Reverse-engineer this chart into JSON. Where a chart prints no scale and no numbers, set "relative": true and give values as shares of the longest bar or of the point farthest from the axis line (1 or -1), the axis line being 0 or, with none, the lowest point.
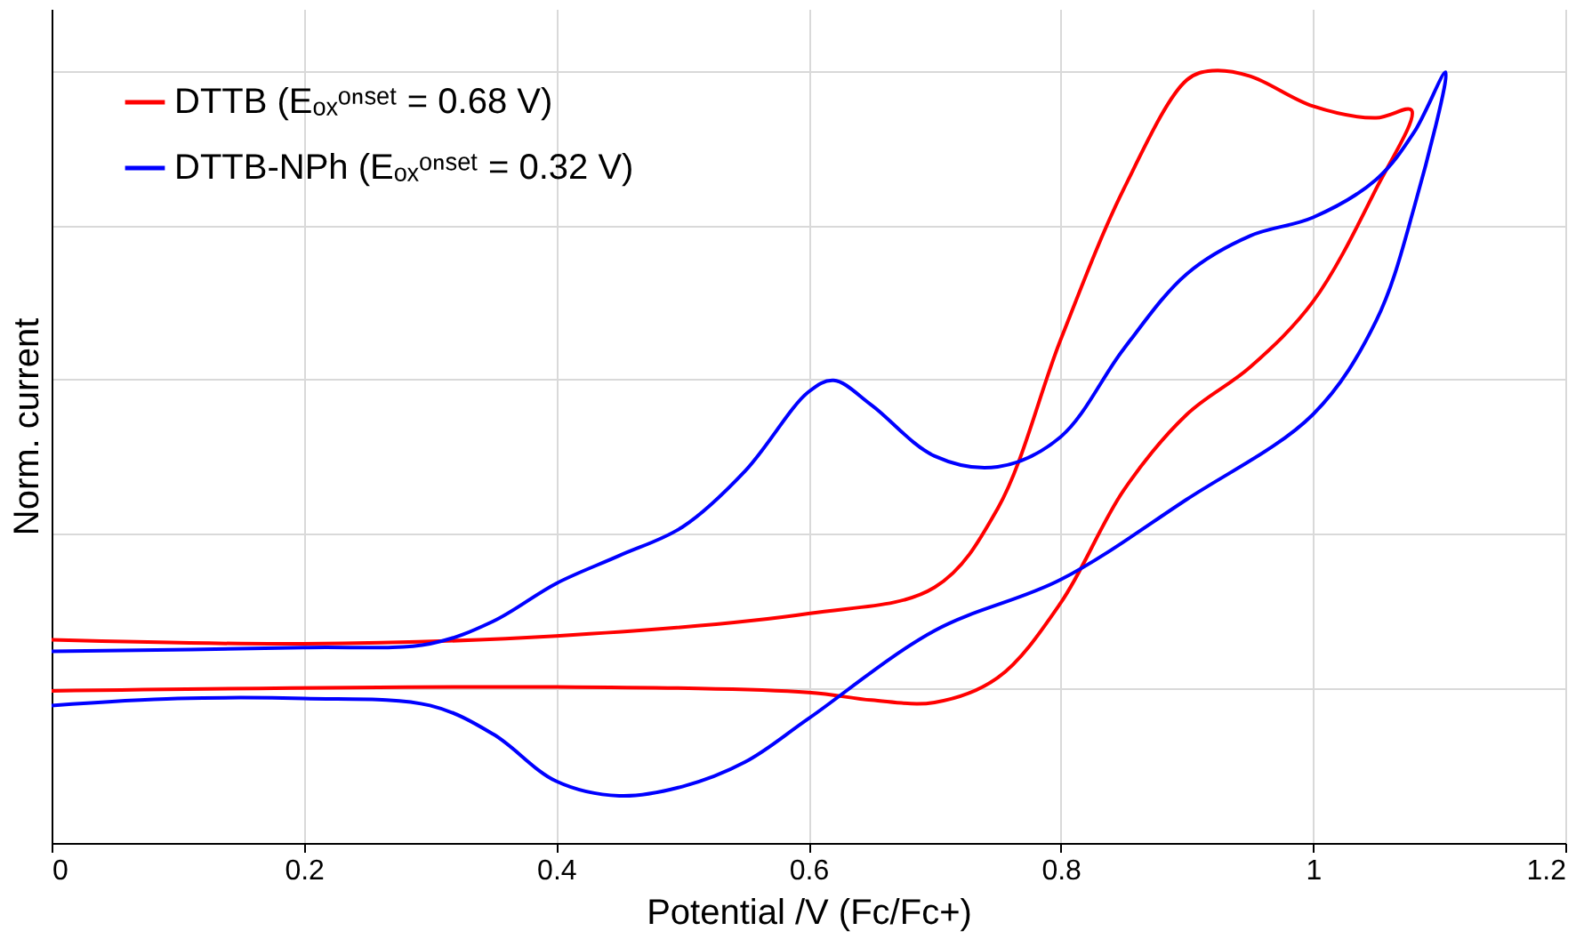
{
  "chart_data": {
    "type": "line",
    "xlabel": "Potential /V (Fc/Fc+)",
    "ylabel": "Norm. current",
    "relative": true,
    "xlim": [
      0,
      1.2
    ],
    "xticks": [
      0,
      0.2,
      0.4,
      0.6,
      0.8,
      1,
      1.2
    ],
    "grid": true,
    "legend": "top left",
    "marker": "none",
    "line_style": "solid",
    "series": [
      {
        "name": "DTTB (Eₒₓᵒⁿˢᵉᵗ = 0.68 V)",
        "color": "#ff0000",
        "x": [
          0,
          0.2,
          0.4,
          0.6,
          0.7,
          0.75,
          0.8,
          0.85,
          0.9,
          0.92,
          0.95,
          1.0,
          1.05,
          1.078,
          1.05,
          1.0,
          0.95,
          0.9,
          0.85,
          0.8,
          0.75,
          0.7,
          0.65,
          0.6,
          0.4,
          0
        ],
        "values": [
          0.263,
          0.258,
          0.268,
          0.297,
          0.331,
          0.433,
          0.652,
          0.847,
          0.988,
          1.0,
          0.993,
          0.954,
          0.939,
          0.949,
          0.847,
          0.701,
          0.616,
          0.555,
          0.457,
          0.311,
          0.214,
          0.182,
          0.185,
          0.195,
          0.202,
          0.197
        ]
      },
      {
        "name": "DTTB-NPh (Eₒₓᵒⁿˢᵉᵗ = 0.32 V)",
        "color": "#0000ff",
        "x": [
          0,
          0.2,
          0.3,
          0.35,
          0.4,
          0.45,
          0.5,
          0.55,
          0.6,
          0.62,
          0.65,
          0.7,
          0.75,
          0.8,
          0.85,
          0.9,
          0.95,
          1.0,
          1.05,
          1.08,
          1.105,
          1.08,
          1.05,
          1.0,
          0.9,
          0.8,
          0.7,
          0.6,
          0.55,
          0.5,
          0.45,
          0.4,
          0.35,
          0.3,
          0.2,
          0.1,
          0
        ],
        "values": [
          0.248,
          0.253,
          0.258,
          0.287,
          0.336,
          0.372,
          0.409,
          0.482,
          0.584,
          0.599,
          0.567,
          0.501,
          0.487,
          0.526,
          0.64,
          0.737,
          0.786,
          0.81,
          0.859,
          0.92,
          0.998,
          0.822,
          0.676,
          0.555,
          0.445,
          0.341,
          0.275,
          0.161,
          0.105,
          0.073,
          0.061,
          0.08,
          0.141,
          0.178,
          0.187,
          0.187,
          0.178
        ]
      }
    ]
  }
}
